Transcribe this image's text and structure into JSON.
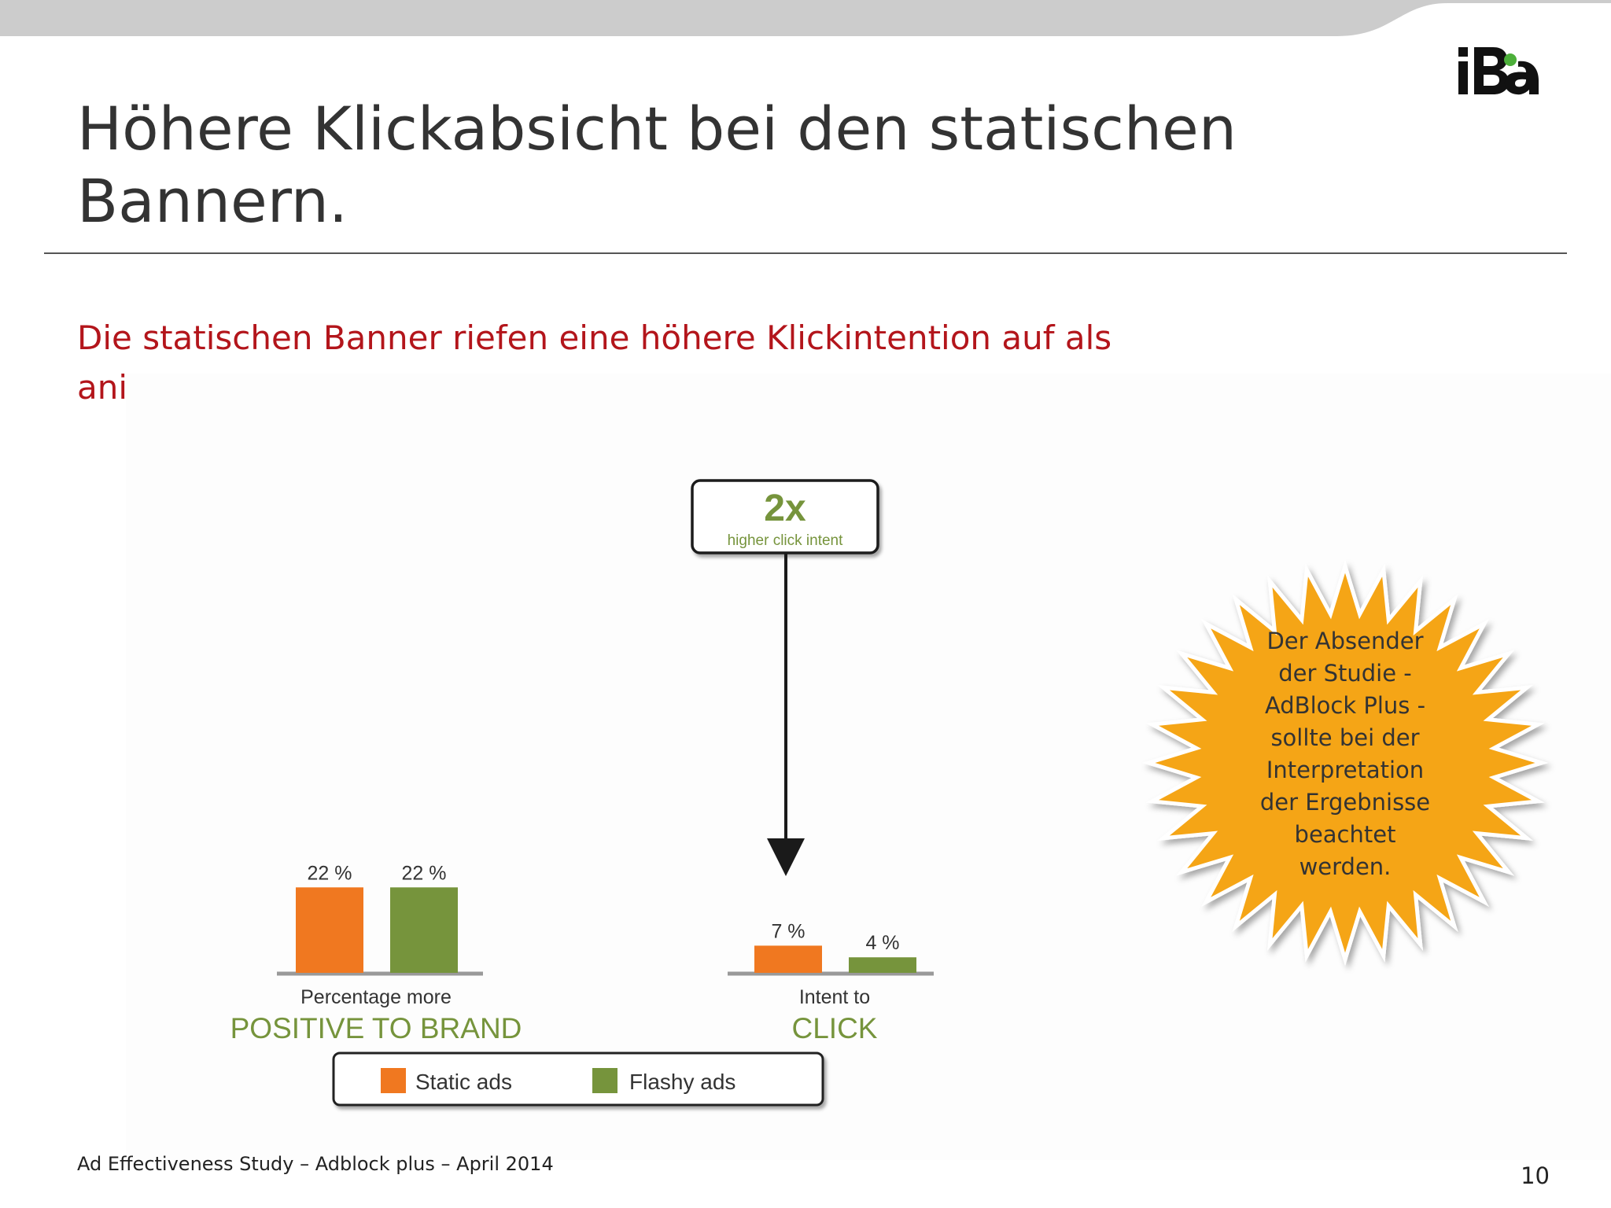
{
  "slide": {
    "title_line1": "Höhere Klickabsicht bei den statischen",
    "title_line2": "Bannern.",
    "subtitle_line1": "Die statischen Banner riefen eine höhere Klickintention auf als",
    "subtitle_line2": "animierte.",
    "note": "Der Absender\nder Studie -\nAdBlock Plus -\nsollte bei der\nInterpretation\nder Ergebnisse\nbeachtet\nwerden.",
    "footer": "Ad Effectiveness Study – Adblock plus – April 2014",
    "page_number": "10",
    "logo_text": "IBA"
  },
  "chart_data": {
    "type": "bar",
    "categories": [
      {
        "label_small": "Percentage more",
        "label_big": "POSITIVE TO BRAND"
      },
      {
        "label_small": "Intent to",
        "label_big": "CLICK"
      }
    ],
    "series": [
      {
        "name": "Static ads",
        "values": [
          22,
          7
        ],
        "labels": [
          "22 %",
          "7 %"
        ],
        "color": "#f07820"
      },
      {
        "name": "Flashy ads",
        "values": [
          22,
          4
        ],
        "labels": [
          "22 %",
          "4 %"
        ],
        "color": "#76943c"
      }
    ],
    "ylim": [
      0,
      25
    ],
    "grid": false,
    "legend": "bottom",
    "callout": {
      "big": "2x",
      "small": "higher click intent",
      "color": "#76943c"
    }
  },
  "colors": {
    "title": "#333333",
    "subtitle": "#b3151b",
    "burst": "#f5a515",
    "top_band": "#cccccc"
  }
}
